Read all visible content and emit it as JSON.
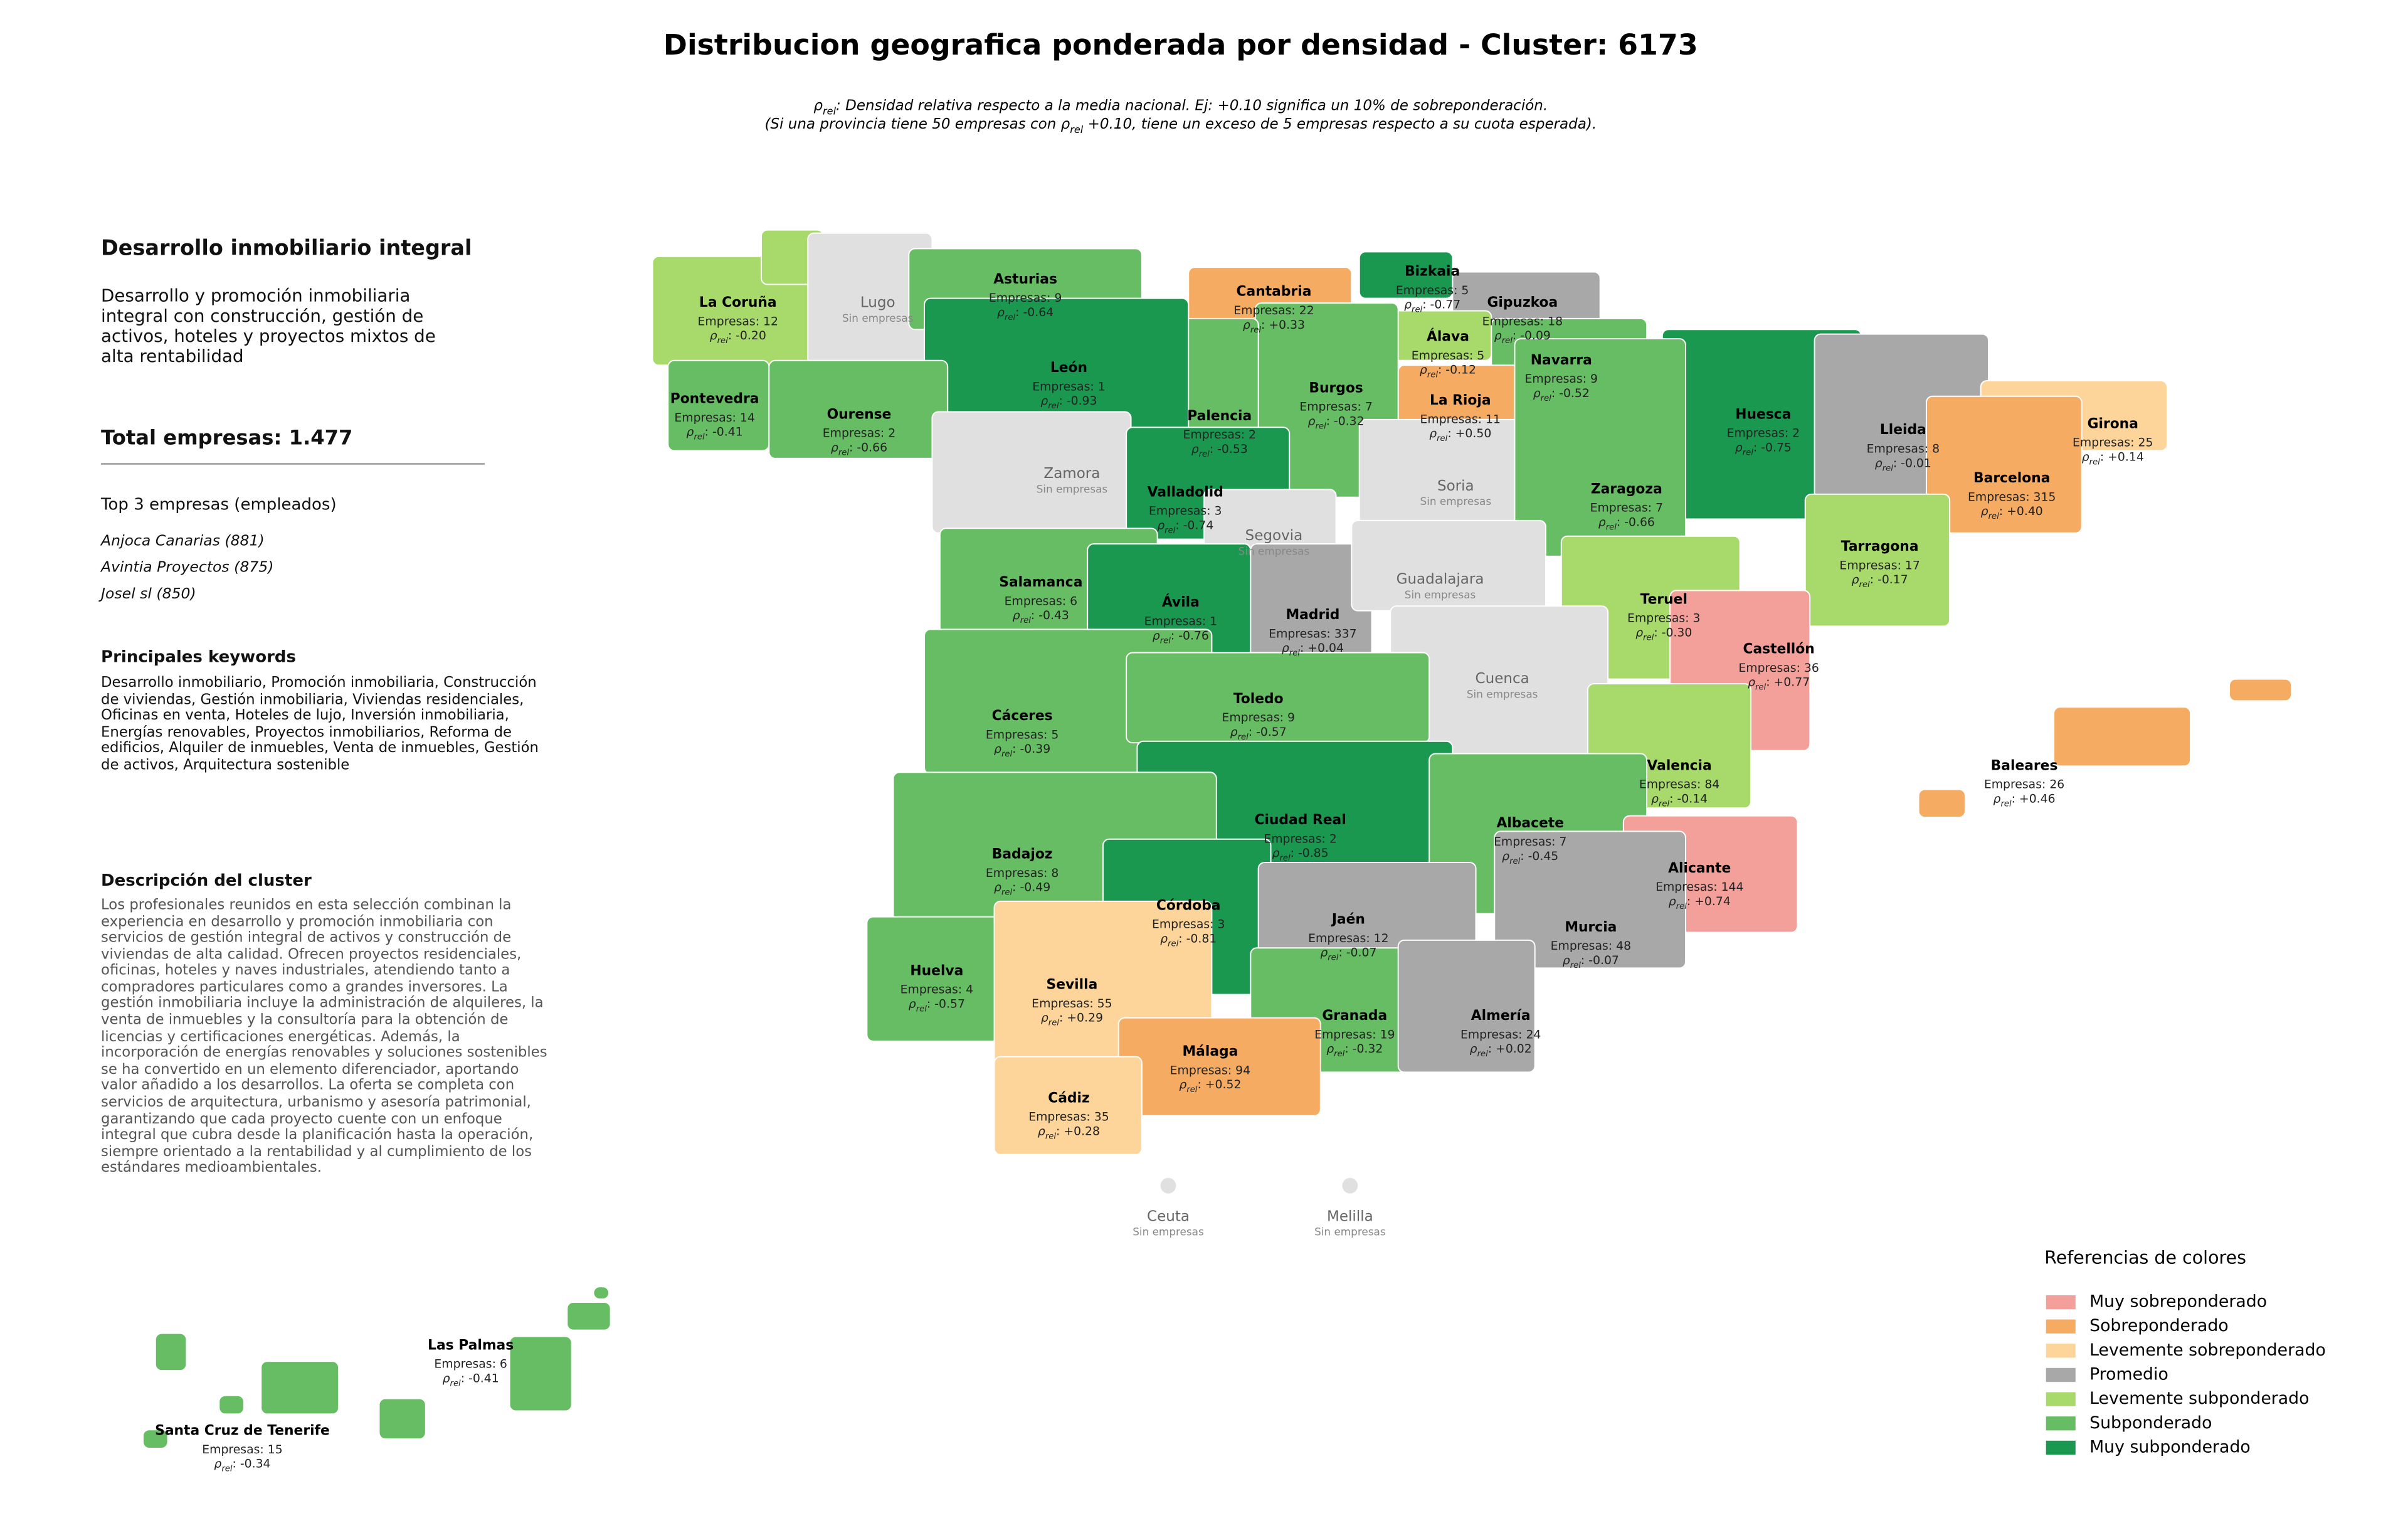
{
  "header": {
    "title": "Distribucion geografica ponderada por densidad - Cluster: 6173",
    "subtitle": [
      [
        {
          "text": "ρ"
        },
        {
          "text": "rel",
          "sub": true
        },
        {
          "text": ": Densidad relativa respecto a la media nacional. Ej: +0.10 significa un 10% de sobreponderación."
        }
      ],
      [
        {
          "text": "(Si una provincia tiene 50 empresas con "
        },
        {
          "text": "ρ"
        },
        {
          "text": "rel",
          "sub": true
        },
        {
          "text": " +0.10, tiene un exceso de 5 empresas respecto a su cuota esperada)."
        }
      ]
    ]
  },
  "panel": {
    "title": "Desarrollo inmobiliario integral",
    "summary": "Desarrollo y promoción inmobiliaria integral con construcción, gestión de activos, hoteles y proyectos mixtos de alta rentabilidad",
    "total": "Total empresas: 1.477",
    "top_title": "Top 3 empresas (empleados)",
    "top": [
      "Anjoca Canarias (881)",
      "Avintia Proyectos (875)",
      "Josel sl (850)"
    ],
    "keywords_title": "Principales keywords",
    "keywords": "Desarrollo inmobiliario, Promoción inmobiliaria, Construcción de viviendas, Gestión inmobiliaria, Viviendas residenciales, Oficinas en venta, Hoteles de lujo, Inversión inmobiliaria, Energías renovables, Proyectos inmobiliarios, Reforma de edificios, Alquiler de inmuebles, Venta de inmuebles, Gestión de activos, Arquitectura sostenible",
    "description_title": "Descripción del cluster",
    "description": "Los profesionales reunidos en esta selección combinan la experiencia en desarrollo y promoción inmobiliaria con servicios de gestión integral de activos y construcción de viviendas de alta calidad. Ofrecen proyectos residenciales, oficinas, hoteles y naves industriales, atendiendo tanto a compradores particulares como a grandes inversores. La gestión inmobiliaria incluye la administración de alquileres, la venta de inmuebles y la consultoría para la obtención de licencias y certificaciones energéticas. Además, la incorporación de energías renovables y soluciones sostenibles se ha convertido en un elemento diferenciador, aportando valor añadido a los desarrollos. La oferta se completa con servicios de arquitectura, urbanismo y asesoría patrimonial, garantizando que cada proyecto cuente con un enfoque integral que cubra desde la planificación hasta la operación, siempre orientado a la rentabilidad y al cumplimiento de los estándares medioambientales."
  },
  "legend": {
    "title": "Referencias de colores",
    "items": [
      {
        "label": "Muy sobreponderado",
        "color": "#f4a09a"
      },
      {
        "label": "Sobreponderado",
        "color": "#f6ab62"
      },
      {
        "label": "Levemente sobreponderado",
        "color": "#fdd59b"
      },
      {
        "label": "Promedio",
        "color": "#a8a8a8"
      },
      {
        "label": "Levemente subponderado",
        "color": "#a7d96b"
      },
      {
        "label": "Subponderado",
        "color": "#66bd63"
      },
      {
        "label": "Muy subponderado",
        "color": "#1b9850"
      }
    ]
  },
  "provinces": [
    {
      "name": "La Coruña",
      "count": "Empresas: 12",
      "rho": "ρrel: -0.20",
      "color": "#a7d96b"
    },
    {
      "name": "Lugo",
      "status": "Sin empresas",
      "color": "#e0e0e0"
    },
    {
      "name": "Asturias",
      "count": "Empresas: 9",
      "rho": "ρrel: -0.64",
      "color": "#66bd63"
    },
    {
      "name": "Cantabria",
      "count": "Empresas: 22",
      "rho": "ρrel: +0.33",
      "color": "#f6ab62"
    },
    {
      "name": "Bizkaia",
      "count": "Empresas: 5",
      "rho": "ρrel: -0.77",
      "color": "#1b9850"
    },
    {
      "name": "Gipuzkoa",
      "count": "Empresas: 18",
      "rho": "ρrel: -0.09",
      "color": "#a8a8a8"
    },
    {
      "name": "Álava",
      "count": "Empresas: 5",
      "rho": "ρrel: -0.12",
      "color": "#a7d96b"
    },
    {
      "name": "Navarra",
      "count": "Empresas: 9",
      "rho": "ρrel: -0.52",
      "color": "#66bd63"
    },
    {
      "name": "La Rioja",
      "count": "Empresas: 11",
      "rho": "ρrel: +0.50",
      "color": "#f6ab62"
    },
    {
      "name": "Burgos",
      "count": "Empresas: 7",
      "rho": "ρrel: -0.32",
      "color": "#66bd63"
    },
    {
      "name": "Palencia",
      "count": "Empresas: 2",
      "rho": "ρrel: -0.53",
      "color": "#66bd63"
    },
    {
      "name": "León",
      "count": "Empresas: 1",
      "rho": "ρrel: -0.93",
      "color": "#1b9850"
    },
    {
      "name": "Pontevedra",
      "count": "Empresas: 14",
      "rho": "ρrel: -0.41",
      "color": "#66bd63"
    },
    {
      "name": "Ourense",
      "count": "Empresas: 2",
      "rho": "ρrel: -0.66",
      "color": "#66bd63"
    },
    {
      "name": "Huesca",
      "count": "Empresas: 2",
      "rho": "ρrel: -0.75",
      "color": "#1b9850"
    },
    {
      "name": "Lleida",
      "count": "Empresas: 8",
      "rho": "ρrel: -0.01",
      "color": "#a8a8a8"
    },
    {
      "name": "Girona",
      "count": "Empresas: 25",
      "rho": "ρrel: +0.14",
      "color": "#fdd59b"
    },
    {
      "name": "Barcelona",
      "count": "Empresas: 315",
      "rho": "ρrel: +0.40",
      "color": "#f6ab62"
    },
    {
      "name": "Zamora",
      "status": "Sin empresas",
      "color": "#e0e0e0"
    },
    {
      "name": "Valladolid",
      "count": "Empresas: 3",
      "rho": "ρrel: -0.74",
      "color": "#1b9850"
    },
    {
      "name": "Soria",
      "status": "Sin empresas",
      "color": "#e0e0e0"
    },
    {
      "name": "Zaragoza",
      "count": "Empresas: 7",
      "rho": "ρrel: -0.66",
      "color": "#66bd63"
    },
    {
      "name": "Tarragona",
      "count": "Empresas: 17",
      "rho": "ρrel: -0.17",
      "color": "#a7d96b"
    },
    {
      "name": "Segovia",
      "status": "Sin empresas",
      "color": "#e0e0e0"
    },
    {
      "name": "Salamanca",
      "count": "Empresas: 6",
      "rho": "ρrel: -0.43",
      "color": "#66bd63"
    },
    {
      "name": "Ávila",
      "count": "Empresas: 1",
      "rho": "ρrel: -0.76",
      "color": "#1b9850"
    },
    {
      "name": "Madrid",
      "count": "Empresas: 337",
      "rho": "ρrel: +0.04",
      "color": "#a8a8a8"
    },
    {
      "name": "Guadalajara",
      "status": "Sin empresas",
      "color": "#e0e0e0"
    },
    {
      "name": "Teruel",
      "count": "Empresas: 3",
      "rho": "ρrel: -0.30",
      "color": "#a7d96b"
    },
    {
      "name": "Castellón",
      "count": "Empresas: 36",
      "rho": "ρrel: +0.77",
      "color": "#f4a09a"
    },
    {
      "name": "Cuenca",
      "status": "Sin empresas",
      "color": "#e0e0e0"
    },
    {
      "name": "Cáceres",
      "count": "Empresas: 5",
      "rho": "ρrel: -0.39",
      "color": "#66bd63"
    },
    {
      "name": "Toledo",
      "count": "Empresas: 9",
      "rho": "ρrel: -0.57",
      "color": "#66bd63"
    },
    {
      "name": "Valencia",
      "count": "Empresas: 84",
      "rho": "ρrel: -0.14",
      "color": "#a7d96b"
    },
    {
      "name": "Baleares",
      "count": "Empresas: 26",
      "rho": "ρrel: +0.46",
      "color": "#f6ab62"
    },
    {
      "name": "Ciudad Real",
      "count": "Empresas: 2",
      "rho": "ρrel: -0.85",
      "color": "#1b9850"
    },
    {
      "name": "Albacete",
      "count": "Empresas: 7",
      "rho": "ρrel: -0.45",
      "color": "#66bd63"
    },
    {
      "name": "Badajoz",
      "count": "Empresas: 8",
      "rho": "ρrel: -0.49",
      "color": "#66bd63"
    },
    {
      "name": "Alicante",
      "count": "Empresas: 144",
      "rho": "ρrel: +0.74",
      "color": "#f4a09a"
    },
    {
      "name": "Córdoba",
      "count": "Empresas: 3",
      "rho": "ρrel: -0.81",
      "color": "#1b9850"
    },
    {
      "name": "Jaén",
      "count": "Empresas: 12",
      "rho": "ρrel: -0.07",
      "color": "#a8a8a8"
    },
    {
      "name": "Murcia",
      "count": "Empresas: 48",
      "rho": "ρrel: -0.07",
      "color": "#a8a8a8"
    },
    {
      "name": "Huelva",
      "count": "Empresas: 4",
      "rho": "ρrel: -0.57",
      "color": "#66bd63"
    },
    {
      "name": "Sevilla",
      "count": "Empresas: 55",
      "rho": "ρrel: +0.29",
      "color": "#fdd59b"
    },
    {
      "name": "Granada",
      "count": "Empresas: 19",
      "rho": "ρrel: -0.32",
      "color": "#66bd63"
    },
    {
      "name": "Almería",
      "count": "Empresas: 24",
      "rho": "ρrel: +0.02",
      "color": "#a8a8a8"
    },
    {
      "name": "Málaga",
      "count": "Empresas: 94",
      "rho": "ρrel: +0.52",
      "color": "#f6ab62"
    },
    {
      "name": "Cádiz",
      "count": "Empresas: 35",
      "rho": "ρrel: +0.28",
      "color": "#fdd59b"
    },
    {
      "name": "Ceuta",
      "status": "Sin empresas",
      "color": "#e0e0e0"
    },
    {
      "name": "Melilla",
      "status": "Sin empresas",
      "color": "#e0e0e0"
    },
    {
      "name": "Las Palmas",
      "count": "Empresas: 6",
      "rho": "ρrel: -0.41",
      "color": "#66bd63"
    },
    {
      "name": "Santa Cruz de Tenerife",
      "count": "Empresas: 15",
      "rho": "ρrel: -0.34",
      "color": "#66bd63"
    }
  ]
}
